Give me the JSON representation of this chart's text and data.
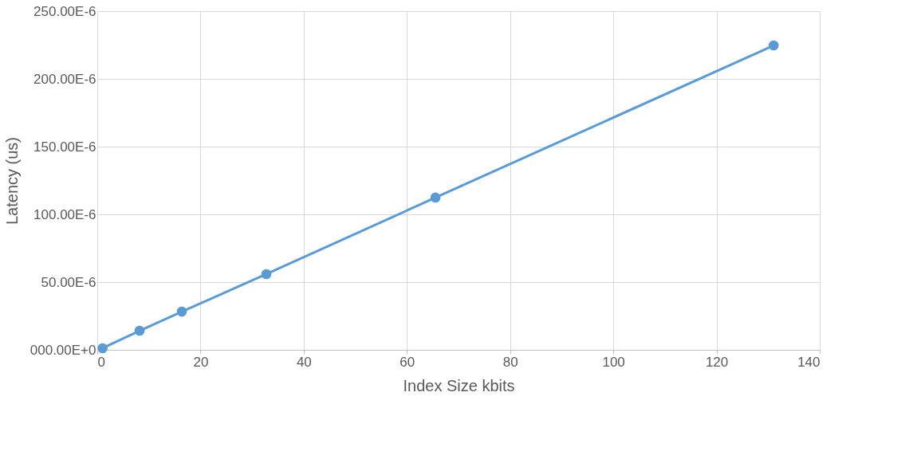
{
  "chart_data": {
    "type": "line",
    "xlabel": "Index  Size kbits",
    "ylabel": "Latency (us)",
    "x": [
      1.024,
      8.192,
      16.384,
      32.768,
      65.536,
      131.072
    ],
    "series": [
      {
        "color": "#5b9bd5",
        "values": [
          1.2e-06,
          1.41e-05,
          2.82e-05,
          5.59e-05,
          0.0001124,
          0.0002247
        ]
      }
    ],
    "xlim": [
      0,
      140
    ],
    "xticks": [
      0,
      20,
      40,
      60,
      80,
      100,
      120,
      140
    ],
    "ylim": [
      0,
      0.00025
    ],
    "yticks": [
      {
        "value": 0,
        "label": "000.00E+0"
      },
      {
        "value": 5e-05,
        "label": "50.00E-6"
      },
      {
        "value": 0.0001,
        "label": "100.00E-6"
      },
      {
        "value": 0.00015,
        "label": "150.00E-6"
      },
      {
        "value": 0.0002,
        "label": "200.00E-6"
      },
      {
        "value": 0.00025,
        "label": "250.00E-6"
      }
    ],
    "grid": true,
    "marker": "circle",
    "line_style": "solid"
  }
}
